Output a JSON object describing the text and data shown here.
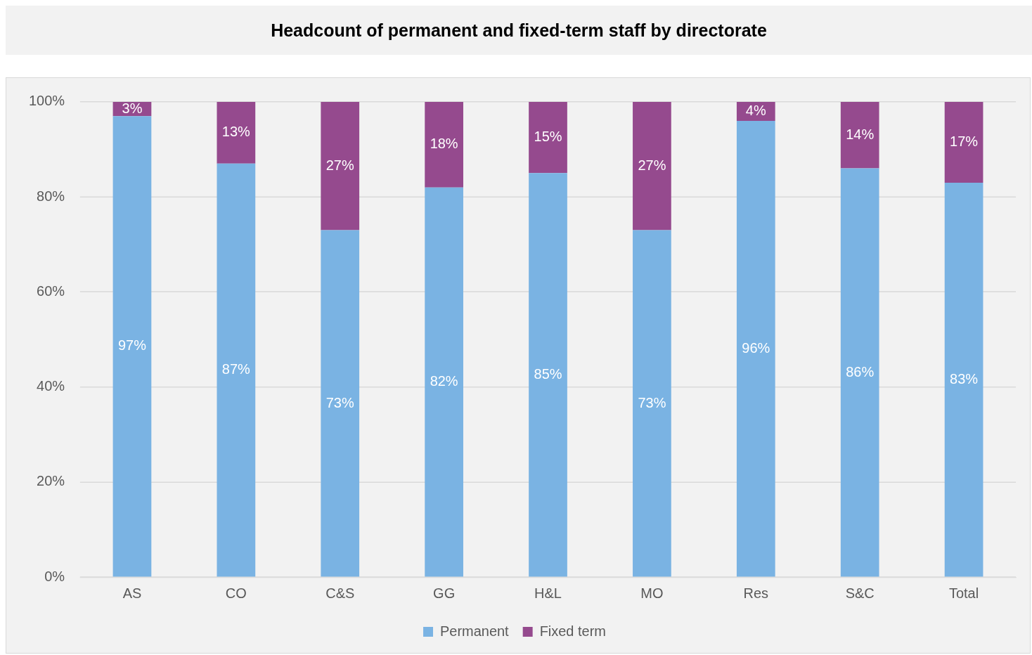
{
  "chart_data": {
    "type": "bar",
    "title": "Headcount of permanent and fixed-term staff by directorate",
    "categories": [
      "AS",
      "CO",
      "C&S",
      "GG",
      "H&L",
      "MO",
      "Res",
      "S&C",
      "Total"
    ],
    "series": [
      {
        "name": "Permanent",
        "color": "#7ab3e3",
        "values": [
          97,
          87,
          73,
          82,
          85,
          73,
          96,
          86,
          83
        ],
        "value_labels": [
          "97%",
          "87%",
          "73%",
          "82%",
          "85%",
          "73%",
          "96%",
          "86%",
          "83%"
        ]
      },
      {
        "name": "Fixed term",
        "color": "#954a8e",
        "values": [
          3,
          13,
          27,
          18,
          15,
          27,
          4,
          14,
          17
        ],
        "value_labels": [
          "3%",
          "13%",
          "27%",
          "18%",
          "15%",
          "27%",
          "4%",
          "14%",
          "17%"
        ]
      }
    ],
    "stacked": true,
    "ylim": [
      0,
      100
    ],
    "yticks": [
      {
        "value": 0,
        "label": "0%"
      },
      {
        "value": 20,
        "label": "20%"
      },
      {
        "value": 40,
        "label": "40%"
      },
      {
        "value": 60,
        "label": "60%"
      },
      {
        "value": 80,
        "label": "80%"
      },
      {
        "value": 100,
        "label": "100%"
      }
    ],
    "grid": "y",
    "legend": "bottom"
  }
}
